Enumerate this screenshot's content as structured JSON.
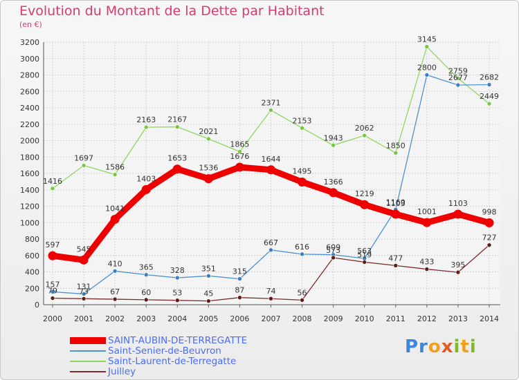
{
  "header": {
    "title": "Evolution du Montant de la Dette par Habitant",
    "subtitle": "(en €)"
  },
  "brand": {
    "name": "Proxiti"
  },
  "chart_data": {
    "type": "line",
    "title": "Evolution du Montant de la Dette par Habitant",
    "subtitle": "(en €)",
    "x": [
      "2000",
      "2001",
      "2002",
      "2003",
      "2004",
      "2005",
      "2006",
      "2007",
      "2008",
      "2009",
      "2010",
      "2011",
      "2012",
      "2013",
      "2014"
    ],
    "ylim": [
      0,
      3200
    ],
    "yticks": [
      0,
      200,
      400,
      600,
      800,
      1000,
      1200,
      1400,
      1600,
      1800,
      2000,
      2200,
      2400,
      2600,
      2800,
      3000,
      3200
    ],
    "grid": true,
    "legend_position": "bottom-left",
    "series": [
      {
        "name": "SAINT-AUBIN-DE-TERREGATTE",
        "color": "#ee0000",
        "emphasis": true,
        "values": [
          597,
          545,
          1041,
          1403,
          1653,
          1536,
          1676,
          1644,
          1495,
          1366,
          1219,
          1103,
          1001,
          1103,
          998
        ]
      },
      {
        "name": "Saint-Senier-de-Beuvron",
        "color": "#4d91d0",
        "marker": "#3a7fc0",
        "values": [
          157,
          131,
          410,
          365,
          328,
          351,
          315,
          667,
          616,
          609,
          563,
          1160,
          2800,
          2677,
          2682
        ]
      },
      {
        "name": "Saint-Laurent-de-Terregatte",
        "color": "#8fd660",
        "marker": "#76c843",
        "values": [
          1416,
          1697,
          1586,
          2163,
          2167,
          2021,
          1865,
          2371,
          2153,
          1943,
          2062,
          1850,
          3145,
          2759,
          2449
        ]
      },
      {
        "name": "Juilley",
        "color": "#7a2b2b",
        "marker": "#5e1c1c",
        "values": [
          79,
          73,
          67,
          60,
          53,
          45,
          87,
          74,
          56,
          573,
          519,
          477,
          433,
          395,
          727
        ]
      }
    ]
  }
}
